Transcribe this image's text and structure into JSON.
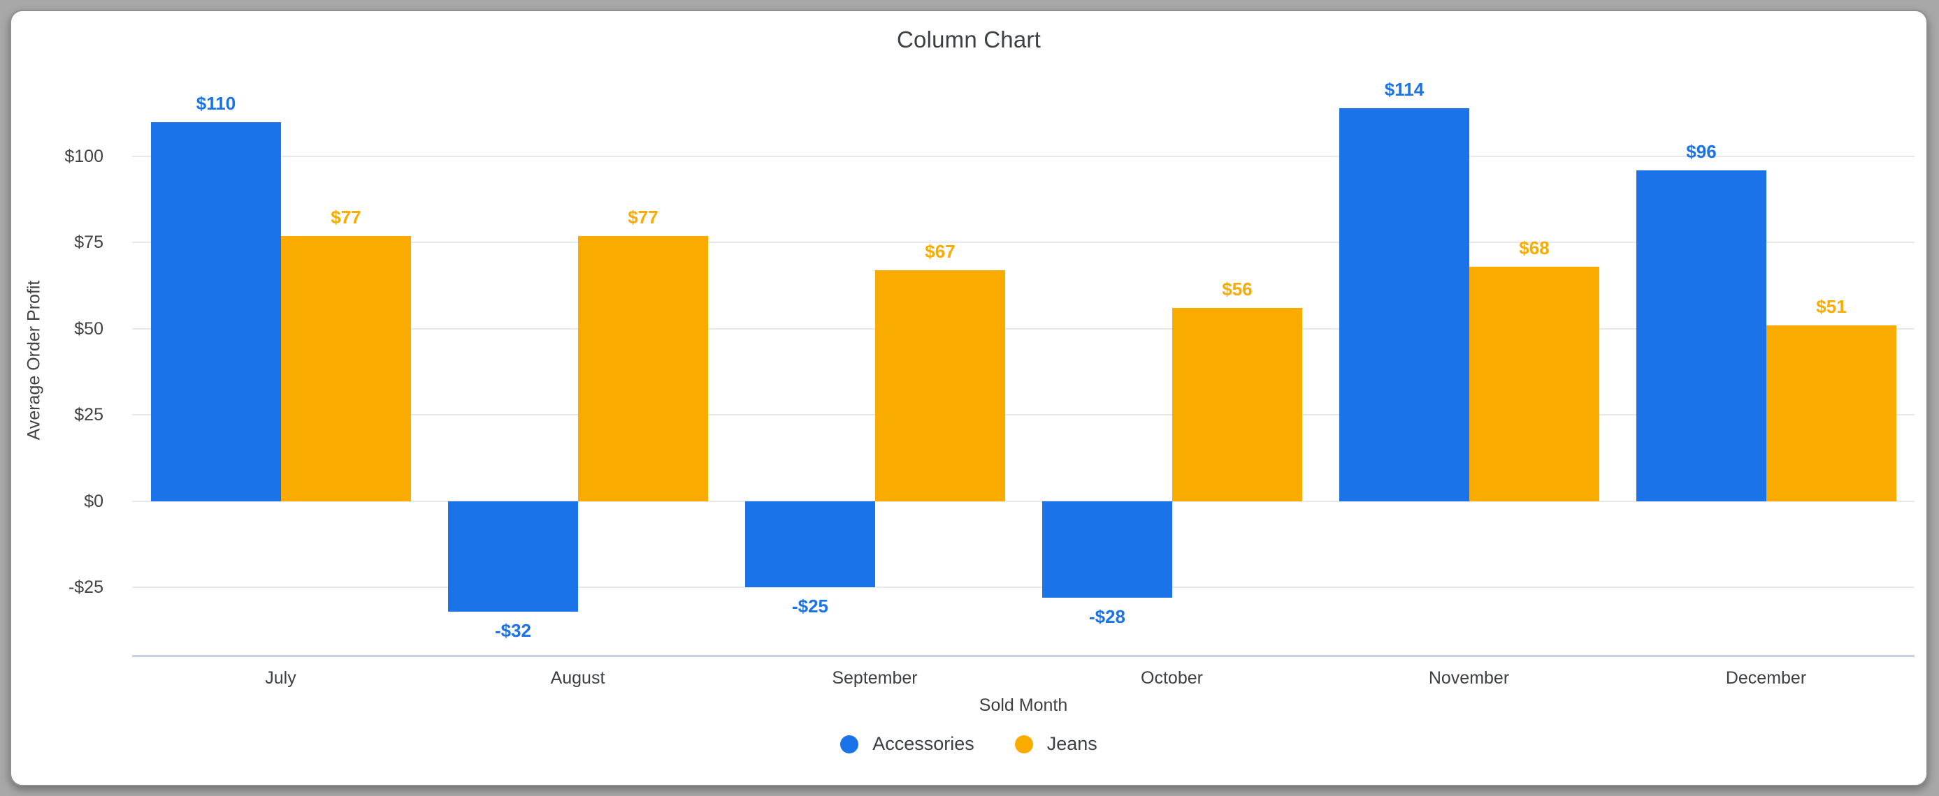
{
  "chart_data": {
    "type": "bar",
    "title": "Column Chart",
    "xlabel": "Sold Month",
    "ylabel": "Average Order Profit",
    "categories": [
      "July",
      "August",
      "September",
      "October",
      "November",
      "December"
    ],
    "series": [
      {
        "name": "Accessories",
        "color": "#1a73e8",
        "values": [
          110,
          -32,
          -25,
          -28,
          114,
          96
        ],
        "labels": [
          "$110",
          "-$32",
          "-$25",
          "-$28",
          "$114",
          "$96"
        ]
      },
      {
        "name": "Jeans",
        "color": "#f9ab00",
        "values": [
          77,
          77,
          67,
          56,
          68,
          51
        ],
        "labels": [
          "$77",
          "$77",
          "$67",
          "$56",
          "$68",
          "$51"
        ]
      }
    ],
    "y_axis": {
      "tick_values": [
        100,
        75,
        50,
        25,
        0,
        -25
      ],
      "tick_labels": [
        "$100",
        "$75",
        "$50",
        "$25",
        "$0",
        "-$25"
      ],
      "ylim": [
        -45,
        125.5
      ]
    },
    "grid": true,
    "legend_position": "bottom",
    "colors": {
      "grid": "#e8e8e8",
      "baseline": "#c7d0e2",
      "title_text": "#3c4043",
      "axis_text": "#424242",
      "card_background": "#ffffff",
      "page_background": "#a8a8a8"
    }
  }
}
